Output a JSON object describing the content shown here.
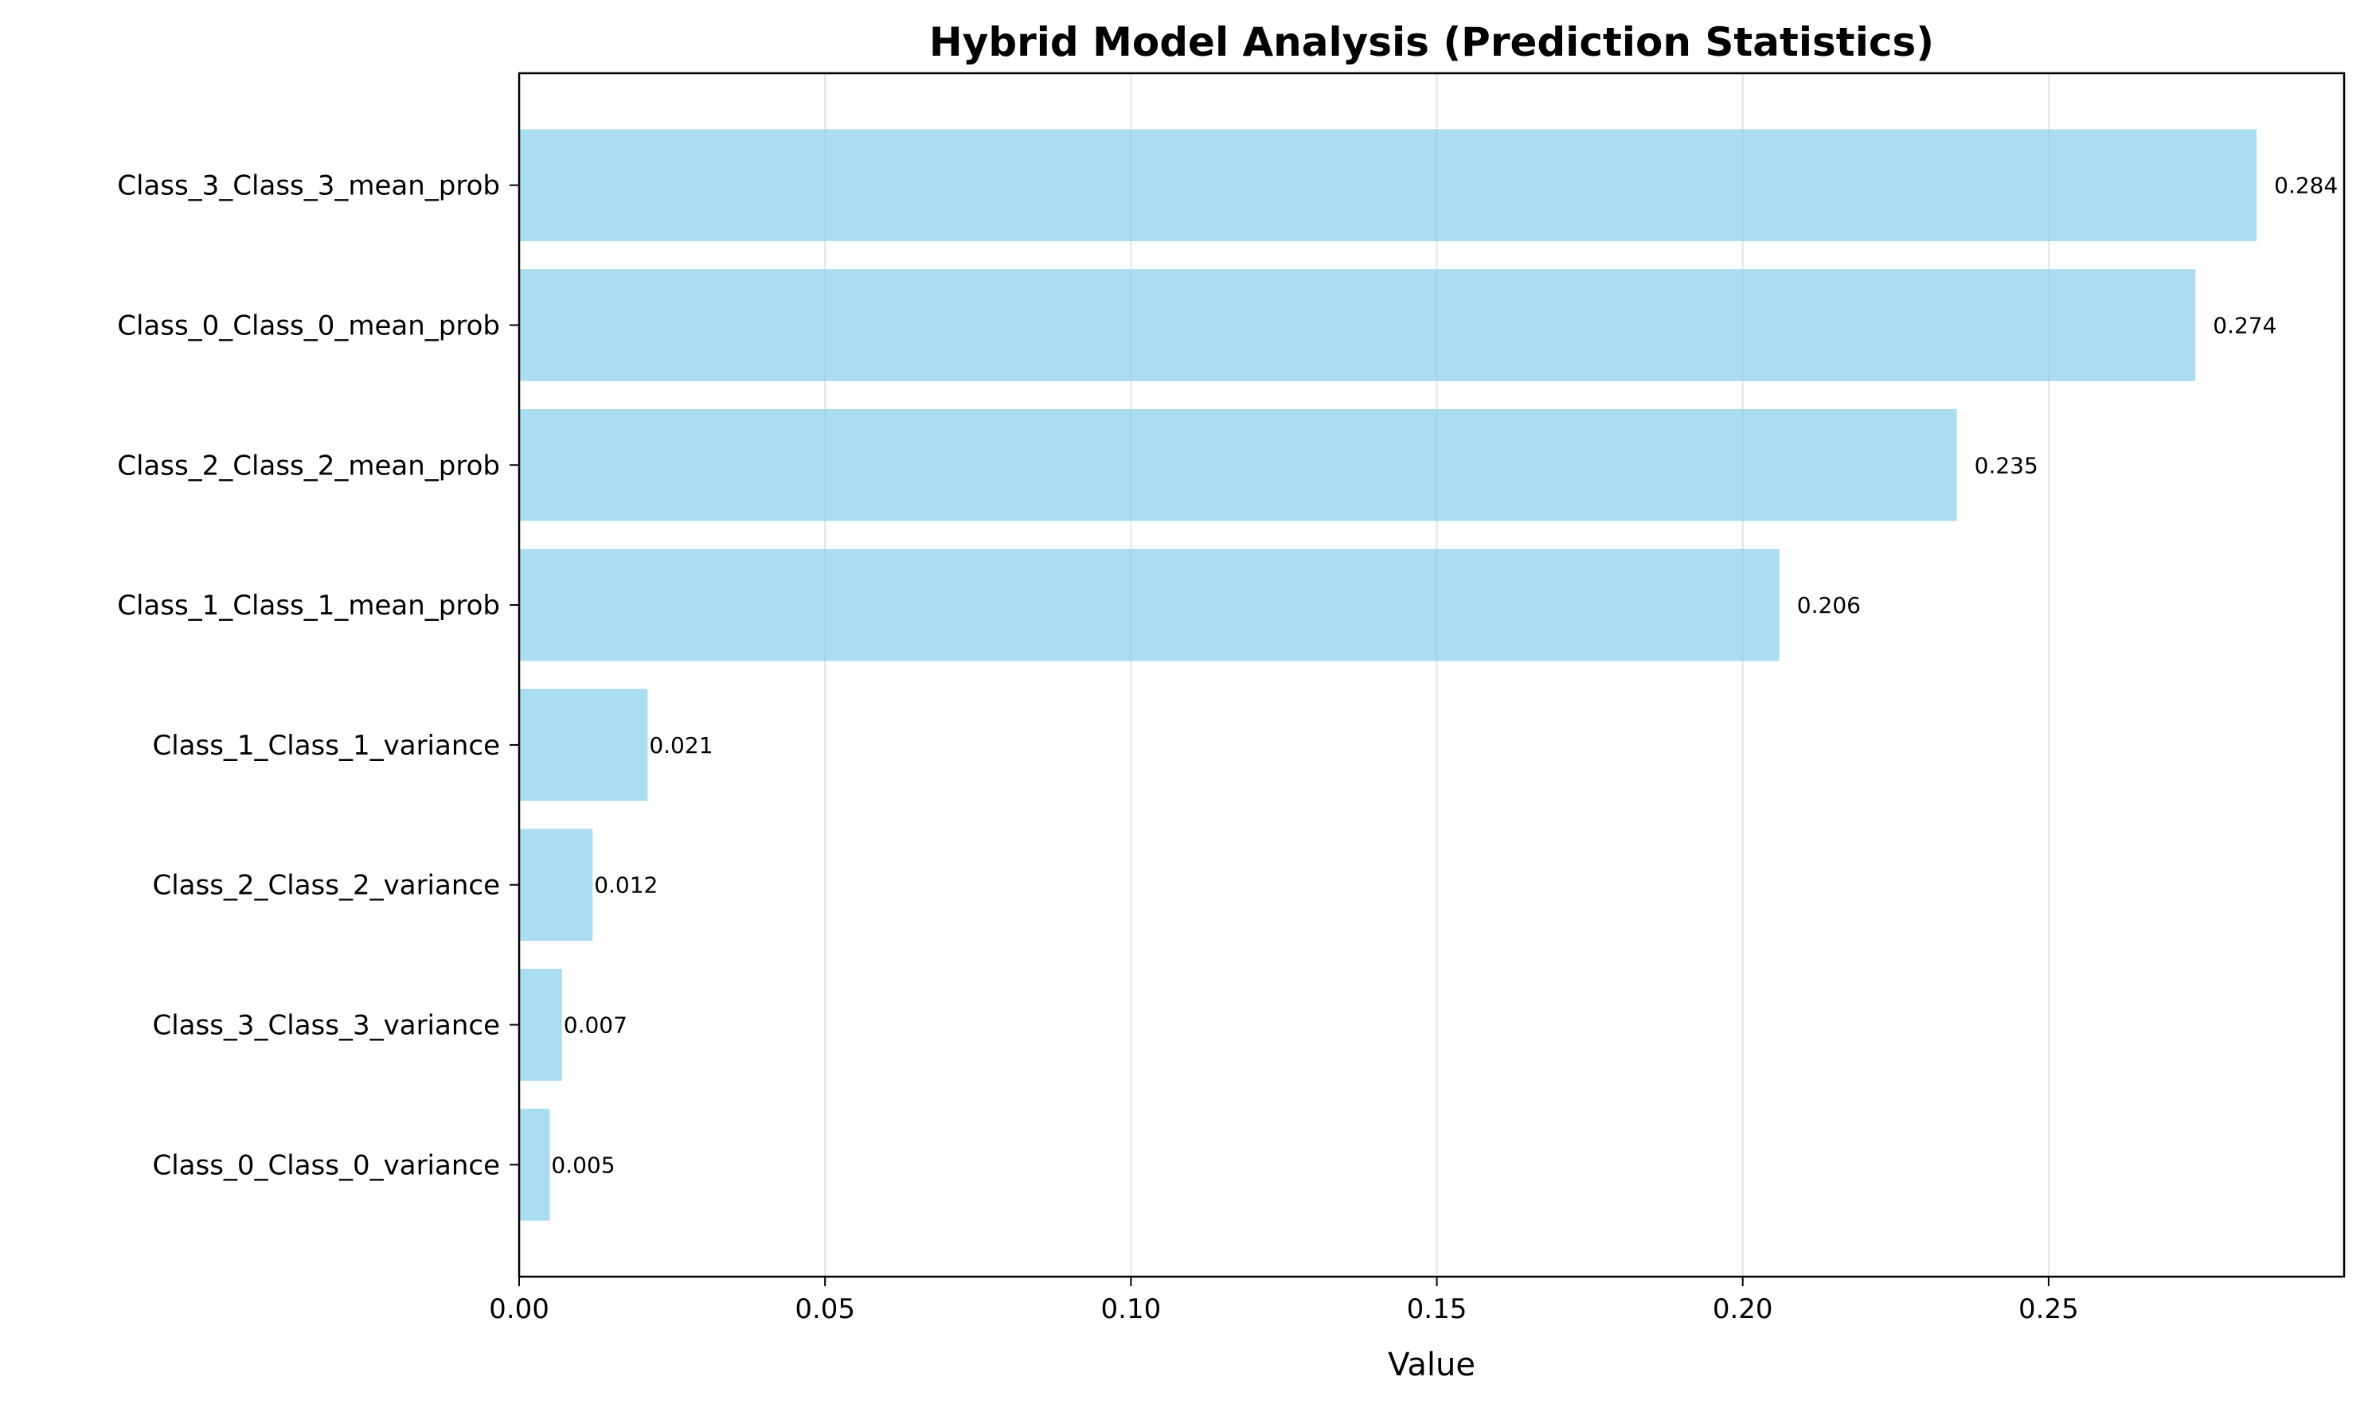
{
  "chart_data": {
    "type": "bar",
    "orientation": "horizontal",
    "title": "Hybrid Model Analysis (Prediction Statistics)",
    "xlabel": "Value",
    "ylabel": "",
    "categories": [
      "Class_3_Class_3_mean_prob",
      "Class_0_Class_0_mean_prob",
      "Class_2_Class_2_mean_prob",
      "Class_1_Class_1_mean_prob",
      "Class_1_Class_1_variance",
      "Class_2_Class_2_variance",
      "Class_3_Class_3_variance",
      "Class_0_Class_0_variance"
    ],
    "values": [
      0.284,
      0.274,
      0.235,
      0.206,
      0.021,
      0.012,
      0.007,
      0.005
    ],
    "data_labels": [
      "0.284",
      "0.274",
      "0.235",
      "0.206",
      "0.021",
      "0.012",
      "0.007",
      "0.005"
    ],
    "xlim": [
      0,
      0.2983
    ],
    "xticks": [
      0,
      0.05,
      0.1,
      0.15,
      0.2,
      0.25
    ],
    "xtick_labels": [
      "0.00",
      "0.05",
      "0.10",
      "0.15",
      "0.20",
      "0.25"
    ],
    "grid": "x-axis",
    "bar_color": "#87ceeb",
    "bar_opacity": 0.7
  }
}
